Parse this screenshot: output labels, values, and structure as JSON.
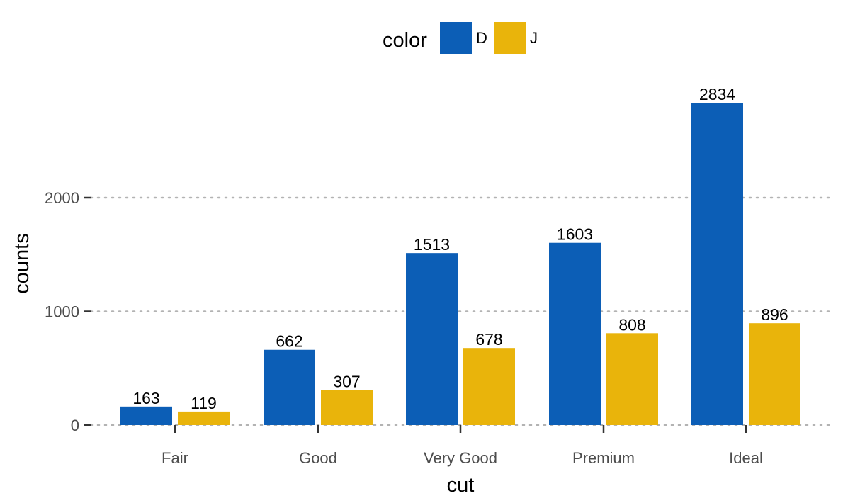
{
  "chart_data": {
    "type": "bar",
    "categories": [
      "Fair",
      "Good",
      "Very Good",
      "Premium",
      "Ideal"
    ],
    "series": [
      {
        "name": "D",
        "values": [
          163,
          662,
          1513,
          1603,
          2834
        ],
        "color": "#0C5EB6"
      },
      {
        "name": "J",
        "values": [
          119,
          307,
          678,
          808,
          896
        ],
        "color": "#E9B40B"
      }
    ],
    "xlabel": "cut",
    "ylabel": "counts",
    "ylim": [
      0,
      3000
    ],
    "yticks": [
      0,
      1000,
      2000
    ],
    "grid": "horizontal dotted",
    "legend": {
      "title": "color",
      "position": "top"
    },
    "data_labels": true
  }
}
